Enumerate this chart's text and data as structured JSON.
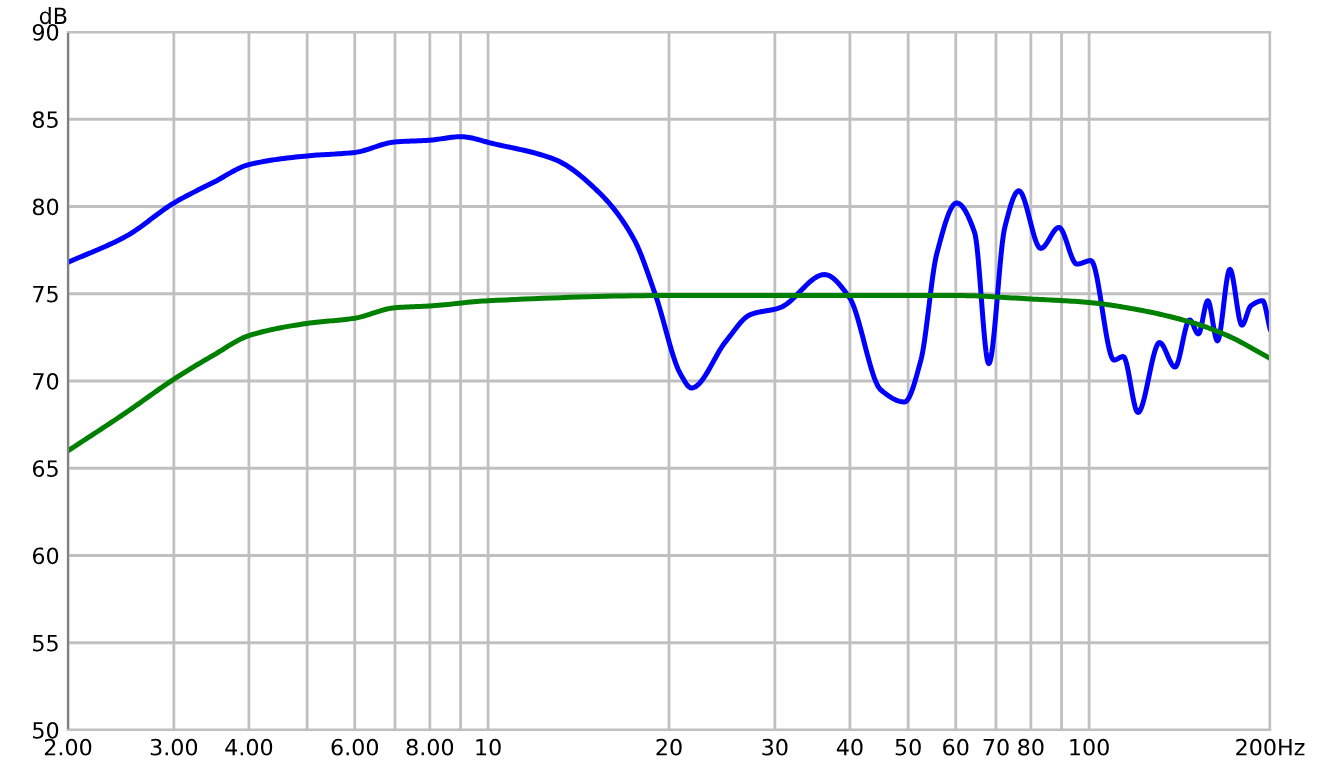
{
  "chart_data": {
    "type": "line",
    "ylabel": "dB",
    "log": "x",
    "xlim": [
      2,
      200
    ],
    "ylim": [
      50,
      90
    ],
    "xticks": [
      {
        "value": 2,
        "label": "2.00"
      },
      {
        "value": 3,
        "label": "3.00"
      },
      {
        "value": 4,
        "label": "4.00"
      },
      {
        "value": 5,
        "label": null
      },
      {
        "value": 6,
        "label": "6.00"
      },
      {
        "value": 7,
        "label": null
      },
      {
        "value": 8,
        "label": "8.00"
      },
      {
        "value": 9,
        "label": null
      },
      10,
      20,
      30,
      40,
      50,
      60,
      70,
      80,
      {
        "value": 90,
        "label": null
      },
      100,
      {
        "value": 200,
        "label": "200Hz"
      }
    ],
    "yticks": [
      50,
      55,
      60,
      65,
      70,
      75,
      80,
      85,
      90
    ],
    "grid": true,
    "marker": "none",
    "line_style": "solid",
    "series": [
      {
        "color": "#0000ff",
        "x": [
          2,
          2.5,
          3,
          3.5,
          4,
          5,
          6,
          7,
          8,
          9,
          10.2,
          12.9,
          15.3,
          17.5,
          19.0,
          20.9,
          21.8,
          24.9,
          27.3,
          30.6,
          36.3,
          39.9,
          45.0,
          49.3,
          52.5,
          55.8,
          60.2,
          64.5,
          68.1,
          72.4,
          76.4,
          83.1,
          89.1,
          95.4,
          100.7,
          110,
          114,
          120.6,
          131,
          139,
          147,
          152,
          157.6,
          163.5,
          171.5,
          179.6,
          185.8,
          194.4,
          200
        ],
        "values": [
          76.8,
          78.3,
          80.2,
          81.4,
          82.4,
          82.9,
          83.1,
          83.7,
          83.8,
          84.0,
          83.6,
          82.7,
          80.8,
          78.1,
          74.9,
          70.4,
          69.6,
          72.3,
          73.8,
          74.2,
          76.1,
          74.8,
          69.5,
          68.8,
          71.2,
          77.3,
          80.2,
          78.5,
          71.0,
          78.8,
          80.9,
          77.6,
          78.8,
          76.7,
          76.9,
          71.2,
          71.4,
          68.2,
          72.2,
          70.8,
          73.5,
          72.7,
          74.6,
          72.3,
          76.4,
          73.2,
          74.3,
          74.6,
          73.0
        ]
      },
      {
        "color": "#008000",
        "x": [
          2,
          2.5,
          3,
          3.5,
          4,
          5,
          6,
          7,
          8,
          10,
          20,
          50,
          60,
          80,
          100,
          120,
          150,
          170,
          200
        ],
        "values": [
          66.0,
          68.2,
          70.1,
          71.5,
          72.6,
          73.3,
          73.6,
          74.2,
          74.3,
          74.6,
          74.9,
          74.9,
          74.9,
          74.7,
          74.5,
          74.1,
          73.3,
          72.6,
          71.3
        ]
      }
    ]
  }
}
